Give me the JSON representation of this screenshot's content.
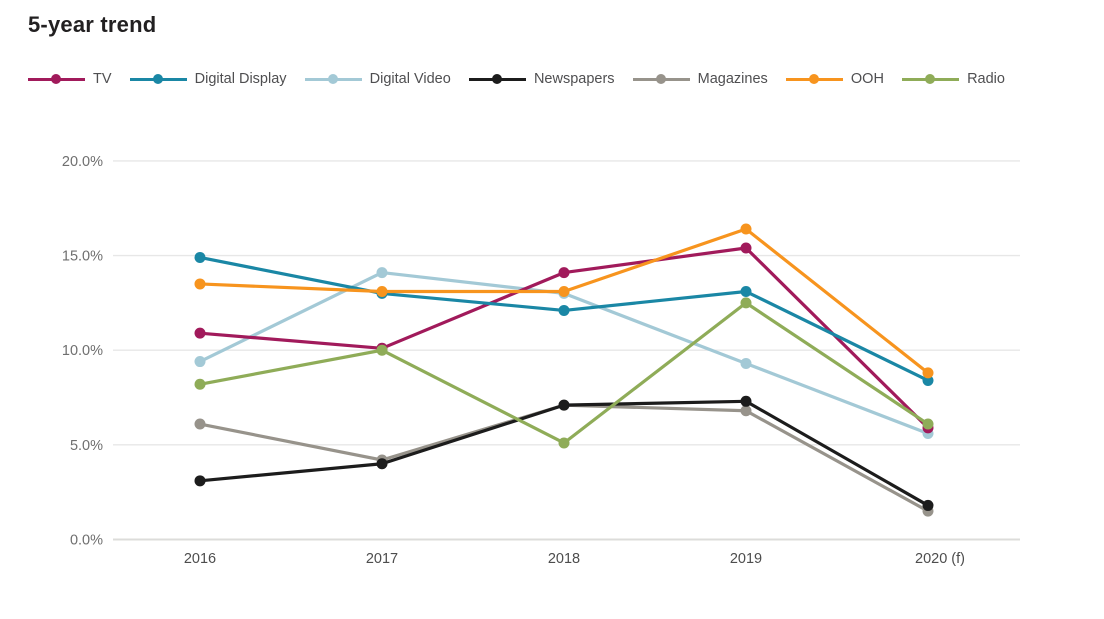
{
  "title": "5-year trend",
  "chart_data": {
    "type": "line",
    "title": "5-year trend",
    "xlabel": "",
    "ylabel": "",
    "x": [
      "2016",
      "2017",
      "2018",
      "2019",
      "2020 (f)"
    ],
    "ylim": [
      0,
      20
    ],
    "yticks": [
      {
        "value": 0,
        "label": "0.0%"
      },
      {
        "value": 5,
        "label": "5.0%"
      },
      {
        "value": 10,
        "label": "10.0%"
      },
      {
        "value": 15,
        "label": "15.0%"
      },
      {
        "value": 20,
        "label": "20.0%"
      }
    ],
    "grid": "horizontal",
    "legend_position": "top",
    "series": [
      {
        "name": "TV",
        "color": "#a11a5b",
        "values": [
          10.9,
          10.1,
          14.1,
          15.4,
          5.9
        ]
      },
      {
        "name": "Digital Display",
        "color": "#1a87a5",
        "values": [
          14.9,
          13.0,
          12.1,
          13.1,
          8.4
        ]
      },
      {
        "name": "Digital Video",
        "color": "#a3c9d6",
        "values": [
          9.4,
          14.1,
          13.0,
          9.3,
          5.6
        ]
      },
      {
        "name": "Newspapers",
        "color": "#1c1c1c",
        "values": [
          3.1,
          4.0,
          7.1,
          7.3,
          1.8
        ]
      },
      {
        "name": "Magazines",
        "color": "#97938b",
        "values": [
          6.1,
          4.2,
          7.1,
          6.8,
          1.5
        ]
      },
      {
        "name": "OOH",
        "color": "#f7941e",
        "values": [
          13.5,
          13.1,
          13.1,
          16.4,
          8.8
        ]
      },
      {
        "name": "Radio",
        "color": "#8fac58",
        "values": [
          8.2,
          10.0,
          5.1,
          12.5,
          6.1
        ]
      }
    ],
    "draw_order": [
      "Digital Video",
      "Magazines",
      "Newspapers",
      "TV",
      "Radio",
      "Digital Display",
      "OOH"
    ]
  },
  "colors": {
    "gridline": "#e7e7e7",
    "baseline": "#dcdcda",
    "y_tick_text": "#6f6f6f",
    "x_tick_text": "#4d4d4d",
    "title_text": "#222021"
  }
}
